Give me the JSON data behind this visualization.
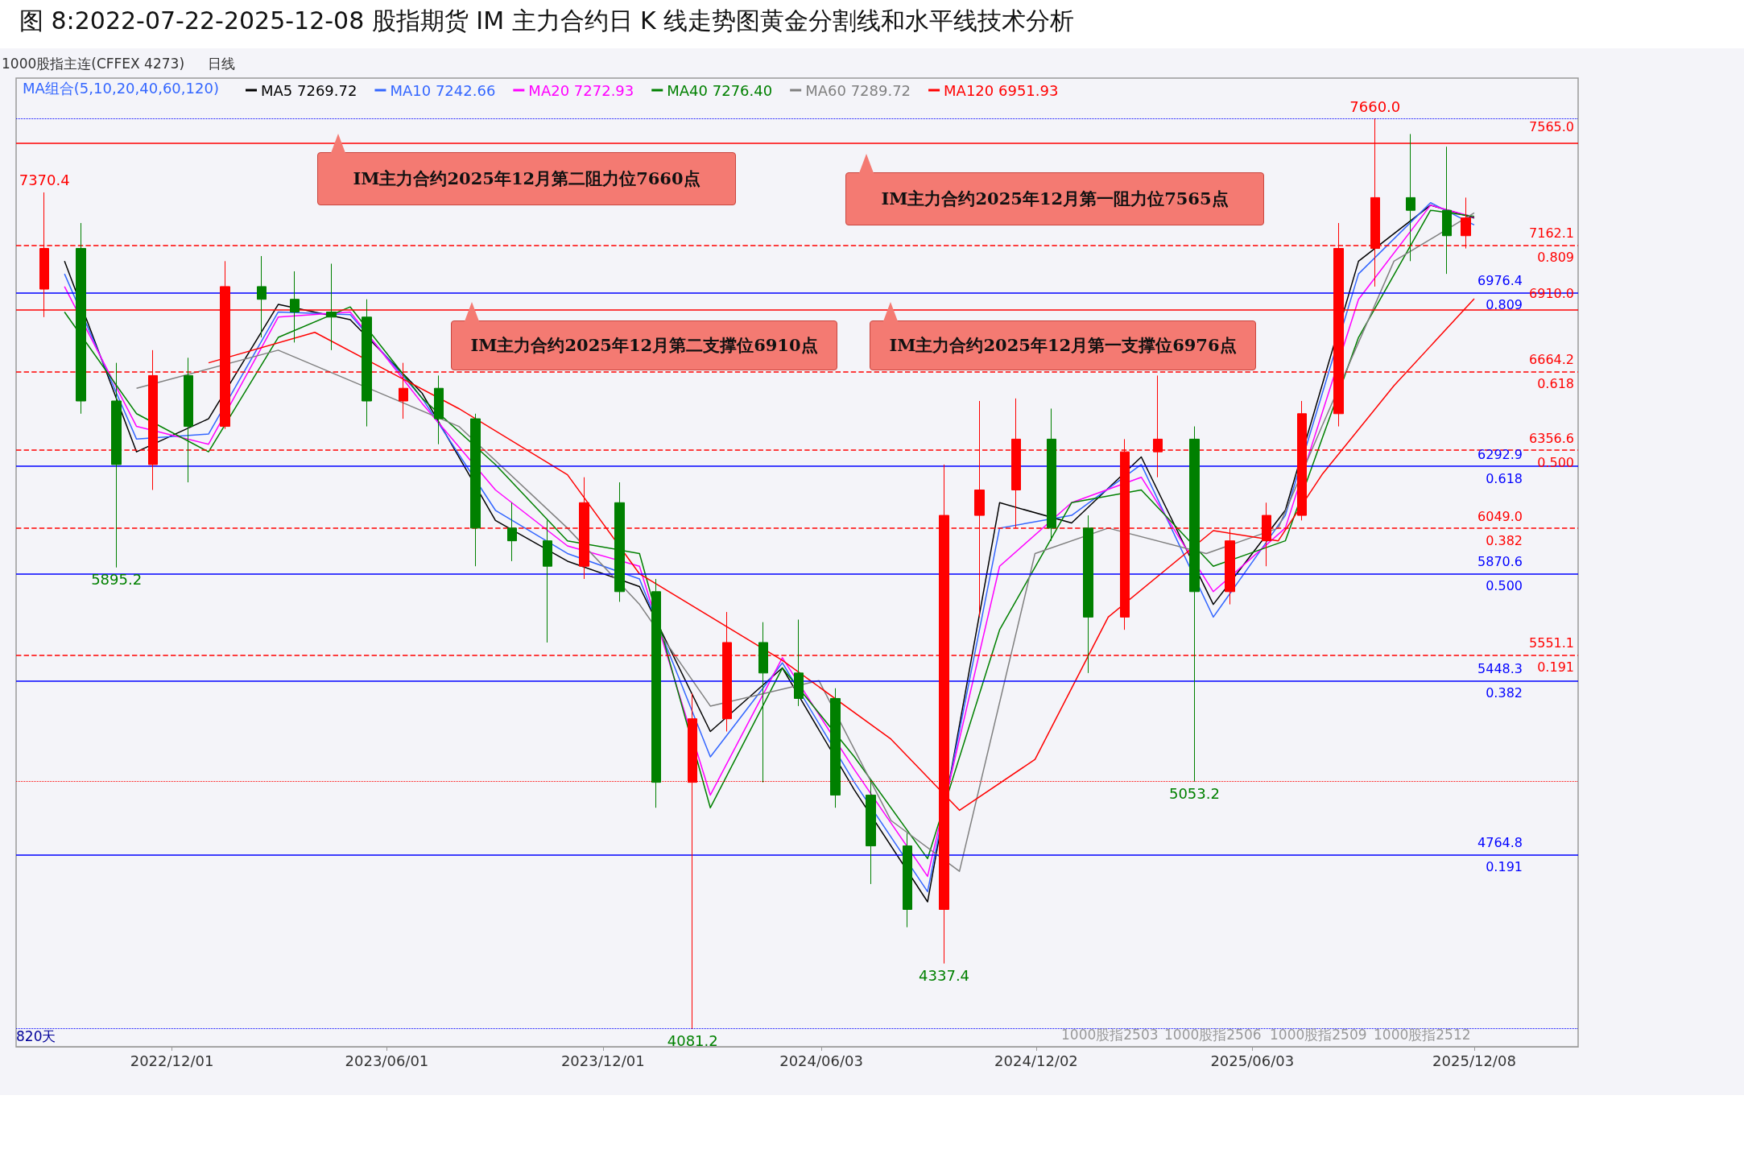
{
  "chart_data": {
    "type": "candlestick",
    "title": "图 8:2022-07-22-2025-12-08 股指期货 IM 主力合约日 K 线走势图黄金分割线和水平线技术分析",
    "xlim": [
      "2022-07-22",
      "2026-03-06"
    ],
    "xticks": [
      {
        "value": "2022-12-01",
        "label": "2022/12/01"
      },
      {
        "value": "2023-06-01",
        "label": "2023/06/01"
      },
      {
        "value": "2023-12-01",
        "label": "2023/12/01"
      },
      {
        "value": "2024-06-03",
        "label": "2024/06/03"
      },
      {
        "value": "2024-12-02",
        "label": "2024/12/02"
      },
      {
        "value": "2025-06-03",
        "label": "2025/06/03"
      },
      {
        "value": "2025-12-08",
        "label": "2025/12/08"
      }
    ],
    "ylim": [
      4010,
      7820
    ],
    "tick_labels": "x",
    "legend": "top left",
    "series": [
      {
        "x": [
          "2022-08-15",
          "2022-09-15",
          "2022-10-15",
          "2022-11-15",
          "2022-12-15",
          "2023-01-15",
          "2023-02-15",
          "2023-03-15",
          "2023-04-15",
          "2023-05-15",
          "2023-06-15",
          "2023-07-15",
          "2023-08-15",
          "2023-09-15",
          "2023-10-15",
          "2023-11-15",
          "2023-12-15",
          "2024-01-15",
          "2024-02-15",
          "2024-03-15",
          "2024-04-15",
          "2024-05-15",
          "2024-06-15",
          "2024-07-15",
          "2024-08-15",
          "2024-09-15",
          "2024-10-15",
          "2024-11-15",
          "2024-12-15",
          "2025-01-15",
          "2025-02-15",
          "2025-03-15",
          "2025-04-15",
          "2025-05-15",
          "2025-06-15",
          "2025-07-15",
          "2025-08-15",
          "2025-09-15",
          "2025-10-15",
          "2025-11-15",
          "2025-12-01"
        ],
        "ohlc": [
          [
            6990,
            7370.4,
            6880,
            7150
          ],
          [
            7150,
            7250,
            6500,
            6550
          ],
          [
            6550,
            6700,
            5895.2,
            6300
          ],
          [
            6300,
            6750,
            6200,
            6650
          ],
          [
            6650,
            6720,
            6230,
            6450
          ],
          [
            6450,
            7100,
            6440,
            7000
          ],
          [
            7000,
            7120,
            6800,
            6950
          ],
          [
            6950,
            7060,
            6780,
            6900
          ],
          [
            6900,
            7090,
            6750,
            6880
          ],
          [
            6880,
            6950,
            6450,
            6550
          ],
          [
            6550,
            6700,
            6480,
            6600
          ],
          [
            6600,
            6650,
            6380,
            6480
          ],
          [
            6480,
            6500,
            5900,
            6050
          ],
          [
            6050,
            6150,
            5920,
            6000
          ],
          [
            6000,
            6080,
            5600,
            5900
          ],
          [
            5900,
            6250,
            5850,
            6150
          ],
          [
            6150,
            6230,
            5760,
            5800
          ],
          [
            5800,
            5850,
            4950,
            5050
          ],
          [
            5050,
            5400,
            4081.2,
            5300
          ],
          [
            5300,
            5720,
            5250,
            5600
          ],
          [
            5600,
            5680,
            5050,
            5480
          ],
          [
            5480,
            5690,
            5350,
            5380
          ],
          [
            5380,
            5420,
            4950,
            5000
          ],
          [
            5000,
            5060,
            4650,
            4800
          ],
          [
            4800,
            4850,
            4480,
            4550
          ],
          [
            4550,
            6300,
            4337.4,
            6100
          ],
          [
            6100,
            6550,
            5700,
            6200
          ],
          [
            6200,
            6560,
            6050,
            6400
          ],
          [
            6400,
            6520,
            6000,
            6050
          ],
          [
            6050,
            6100,
            5480,
            5700
          ],
          [
            5700,
            6400,
            5650,
            6350
          ],
          [
            6350,
            6650,
            6250,
            6400
          ],
          [
            6400,
            6450,
            5053.2,
            5800
          ],
          [
            5800,
            6050,
            5750,
            6000
          ],
          [
            6000,
            6150,
            5900,
            6100
          ],
          [
            6100,
            6550,
            6080,
            6500
          ],
          [
            6500,
            7250,
            6450,
            7150
          ],
          [
            7150,
            7660.0,
            7000,
            7350
          ],
          [
            7350,
            7600,
            7100,
            7300
          ],
          [
            7300,
            7550,
            7050,
            7200
          ],
          [
            7200,
            7350,
            7150,
            7270
          ]
        ],
        "colors": [
          "#ff0000",
          "#008000",
          "#008000",
          "#ff0000",
          "#008000",
          "#ff0000",
          "#008000",
          "#008000",
          "#008000",
          "#008000",
          "#ff0000",
          "#008000",
          "#008000",
          "#008000",
          "#008000",
          "#ff0000",
          "#008000",
          "#008000",
          "#ff0000",
          "#ff0000",
          "#008000",
          "#008000",
          "#008000",
          "#008000",
          "#008000",
          "#ff0000",
          "#ff0000",
          "#ff0000",
          "#008000",
          "#008000",
          "#ff0000",
          "#ff0000",
          "#008000",
          "#ff0000",
          "#ff0000",
          "#ff0000",
          "#ff0000",
          "#ff0000",
          "#008000",
          "#008000",
          "#ff0000"
        ]
      },
      {
        "type": "line",
        "name": "MA5 7269.72",
        "color": "#000000",
        "x": [
          "2022-09-01",
          "2022-11-01",
          "2023-01-01",
          "2023-03-01",
          "2023-05-01",
          "2023-07-01",
          "2023-09-01",
          "2023-11-01",
          "2024-01-01",
          "2024-03-01",
          "2024-05-01",
          "2024-07-01",
          "2024-09-01",
          "2024-11-01",
          "2025-01-01",
          "2025-03-01",
          "2025-05-01",
          "2025-07-01",
          "2025-09-01",
          "2025-11-01",
          "2025-12-08"
        ],
        "values": [
          7100,
          6350,
          6480,
          6930,
          6870,
          6580,
          6080,
          5920,
          5820,
          5250,
          5500,
          5020,
          4580,
          6150,
          6070,
          6330,
          5750,
          6120,
          7100,
          7320,
          7269.72
        ]
      },
      {
        "type": "line",
        "name": "MA10 7242.66",
        "color": "#3366ff",
        "x": [
          "2022-09-01",
          "2022-11-01",
          "2023-01-01",
          "2023-03-01",
          "2023-05-01",
          "2023-07-01",
          "2023-09-01",
          "2023-11-01",
          "2024-01-01",
          "2024-03-01",
          "2024-05-01",
          "2024-07-01",
          "2024-09-01",
          "2024-11-01",
          "2025-01-01",
          "2025-03-01",
          "2025-05-01",
          "2025-07-01",
          "2025-09-01",
          "2025-11-01",
          "2025-12-08"
        ],
        "values": [
          7050,
          6400,
          6420,
          6900,
          6890,
          6560,
          6120,
          5950,
          5850,
          5150,
          5520,
          5050,
          4620,
          6050,
          6100,
          6300,
          5700,
          6100,
          7050,
          7330,
          7242.66
        ]
      },
      {
        "type": "line",
        "name": "MA20 7272.93",
        "color": "#ff00ff",
        "x": [
          "2022-09-01",
          "2022-11-01",
          "2023-01-01",
          "2023-03-01",
          "2023-05-01",
          "2023-07-01",
          "2023-09-01",
          "2023-11-01",
          "2024-01-01",
          "2024-03-01",
          "2024-05-01",
          "2024-07-01",
          "2024-09-01",
          "2024-11-01",
          "2025-01-01",
          "2025-03-01",
          "2025-05-01",
          "2025-07-01",
          "2025-09-01",
          "2025-11-01",
          "2025-12-08"
        ],
        "values": [
          7000,
          6450,
          6380,
          6880,
          6900,
          6540,
          6200,
          5980,
          5900,
          5000,
          5540,
          5100,
          4680,
          5900,
          6150,
          6250,
          5800,
          6050,
          6950,
          7320,
          7272.93
        ]
      },
      {
        "type": "line",
        "name": "MA40 7276.40",
        "color": "#008000",
        "x": [
          "2022-09-01",
          "2022-11-01",
          "2023-01-01",
          "2023-03-01",
          "2023-05-01",
          "2023-07-01",
          "2023-09-01",
          "2023-11-01",
          "2024-01-01",
          "2024-03-01",
          "2024-05-01",
          "2024-07-01",
          "2024-09-01",
          "2024-11-01",
          "2025-01-01",
          "2025-03-01",
          "2025-05-01",
          "2025-07-01",
          "2025-09-01",
          "2025-11-01",
          "2025-12-08"
        ],
        "values": [
          6900,
          6500,
          6350,
          6800,
          6920,
          6560,
          6300,
          6000,
          5950,
          4950,
          5500,
          5150,
          4750,
          5650,
          6150,
          6200,
          5900,
          6000,
          6800,
          7300,
          7276.4
        ]
      },
      {
        "type": "line",
        "name": "MA60 7289.72",
        "color": "#808080",
        "x": [
          "2022-11-01",
          "2023-03-01",
          "2023-08-01",
          "2023-11-01",
          "2024-01-01",
          "2024-03-01",
          "2024-06-01",
          "2024-08-01",
          "2024-09-28",
          "2024-12-01",
          "2025-02-01",
          "2025-04-25",
          "2025-06-25",
          "2025-08-01",
          "2025-10-01",
          "2025-12-08"
        ],
        "values": [
          6600,
          6750,
          6450,
          6050,
          5750,
          5350,
          5450,
          4900,
          4700,
          5950,
          6050,
          5950,
          6050,
          6450,
          7100,
          7289.72
        ]
      },
      {
        "type": "line",
        "name": "MA120 6951.93",
        "color": "#ff0000",
        "x": [
          "2023-01-01",
          "2023-04-01",
          "2023-08-01",
          "2023-11-01",
          "2024-01-01",
          "2024-05-01",
          "2024-08-01",
          "2024-09-28",
          "2024-12-01",
          "2025-02-01",
          "2025-05-01",
          "2025-06-25",
          "2025-08-01",
          "2025-10-01",
          "2025-12-08"
        ],
        "values": [
          6700,
          6820,
          6520,
          6260,
          5870,
          5530,
          5220,
          4940,
          5140,
          5700,
          6040,
          6000,
          6260,
          6610,
          6951.93
        ]
      }
    ],
    "ref_lines": [
      {
        "axis": "y",
        "value": 7565.0,
        "label": "7565.0",
        "color": "#ff0000",
        "line_style": "solid"
      },
      {
        "axis": "y",
        "value": 6976.4,
        "label": "6976.4\n0.809",
        "color": "#0000ff",
        "line_style": "solid"
      },
      {
        "axis": "y",
        "value": 6910.0,
        "label": "6910.0",
        "color": "#ff0000",
        "line_style": "solid"
      },
      {
        "axis": "y",
        "value": 6292.9,
        "label": "6292.9\n0.618",
        "color": "#0000ff",
        "line_style": "solid"
      },
      {
        "axis": "y",
        "value": 6356.6,
        "label": "6356.6\n0.500",
        "color": "#ff0000",
        "line_style": "dashed"
      },
      {
        "axis": "y",
        "value": 5870.6,
        "label": "5870.6\n0.500",
        "color": "#0000ff",
        "line_style": "solid"
      },
      {
        "axis": "y",
        "value": 5551.1,
        "label": "5551.1\n0.191",
        "color": "#ff0000",
        "line_style": "dashed"
      },
      {
        "axis": "y",
        "value": 5448.3,
        "label": "5448.3\n0.382",
        "color": "#0000ff",
        "line_style": "solid"
      },
      {
        "axis": "y",
        "value": 7162.1,
        "label": "7162.1\n0.809",
        "color": "#ff0000",
        "line_style": "dashed"
      },
      {
        "axis": "y",
        "value": 4764.8,
        "label": "4764.8\n0.191",
        "color": "#0000ff",
        "line_style": "solid"
      },
      {
        "axis": "y",
        "value": 6664.2,
        "label": "6664.2\n0.618",
        "color": "#ff0000",
        "line_style": "dashed"
      },
      {
        "axis": "y",
        "value": 6049.0,
        "label": "6049.0\n0.382",
        "color": "#ff0000",
        "line_style": "dashed"
      },
      {
        "axis": "y",
        "value": 5053.2,
        "label": null,
        "color": "#ff0000",
        "line_style": "dotted"
      },
      {
        "axis": "y",
        "value": 7660.0,
        "label": null,
        "color": "#0000ff",
        "line_style": "dotted"
      },
      {
        "axis": "y",
        "value": 4081.2,
        "label": null,
        "color": "#0000ff",
        "line_style": "dotted"
      }
    ],
    "annotations": [
      "IM主力合约2025年12月第二阻力位7660点",
      "IM主力合约2025年12月第一阻力位7565点",
      "IM主力合约2025年12月第二支撑位6910点",
      "IM主力合约2025年12月第一支撑位6976点",
      "1000股指主连(CFFEX 4273)",
      "日线",
      "MA组合(5,10,20,40,60,120)",
      "820天",
      "1000股指2503",
      "1000股指2506",
      "1000股指2509",
      "1000股指2512",
      {
        "text": "7660.0",
        "x": "2025-09-15",
        "y": 7660.0
      },
      {
        "text": "7370.4",
        "x": "2022-08-15",
        "y": 7370.4
      },
      {
        "text": "5895.2",
        "x": "2022-10-15",
        "y": 5895.2
      },
      {
        "text": "4081.2",
        "x": "2024-02-15",
        "y": 4081.2
      },
      {
        "text": "4337.4",
        "x": "2024-09-15",
        "y": 4337.4
      },
      {
        "text": "5053.2",
        "x": "2025-04-15",
        "y": 5053.2
      }
    ]
  }
}
